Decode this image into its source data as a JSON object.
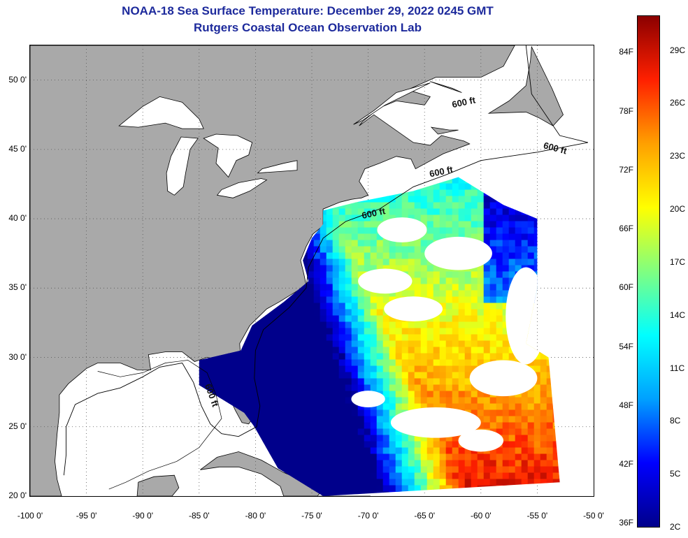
{
  "title": "NOAA-18 Sea Surface Temperature:  December 29, 2022 0245 GMT",
  "subtitle": "Rutgers Coastal Ocean Observation Lab",
  "map": {
    "lon_range": [
      -100,
      -50
    ],
    "lat_range": [
      20,
      52.5
    ],
    "lat_ticks": [
      {
        "value": 50,
        "label": "50 0'"
      },
      {
        "value": 45,
        "label": "45 0'"
      },
      {
        "value": 40,
        "label": "40 0'"
      },
      {
        "value": 35,
        "label": "35 0'"
      },
      {
        "value": 30,
        "label": "30 0'"
      },
      {
        "value": 25,
        "label": "25 0'"
      },
      {
        "value": 20,
        "label": "20 0'"
      }
    ],
    "lon_ticks": [
      {
        "value": -100,
        "label": "-100 0'"
      },
      {
        "value": -95,
        "label": "-95 0'"
      },
      {
        "value": -90,
        "label": "-90 0'"
      },
      {
        "value": -85,
        "label": "-85 0'"
      },
      {
        "value": -80,
        "label": "-80 0'"
      },
      {
        "value": -75,
        "label": "-75 0'"
      },
      {
        "value": -70,
        "label": "-70 0'"
      },
      {
        "value": -65,
        "label": "-65 0'"
      },
      {
        "value": -60,
        "label": "-60 0'"
      },
      {
        "value": -55,
        "label": "-55 0'"
      },
      {
        "value": -50,
        "label": "-50 0'"
      }
    ],
    "depth_labels": [
      {
        "text": "600 ft",
        "lon": -62.5,
        "lat": 48.0
      },
      {
        "text": "600 ft",
        "lon": -54.5,
        "lat": 45.1
      },
      {
        "text": "600 ft",
        "lon": -64.5,
        "lat": 43.0
      },
      {
        "text": "600 ft",
        "lon": -70.5,
        "lat": 40.0
      },
      {
        "text": "600 ft",
        "lon": -84.5,
        "lat": 28.0
      }
    ],
    "colors": {
      "land": "#a9a9a9",
      "no_data": "#ffffff",
      "grid": "#555555"
    }
  },
  "colorbar": {
    "f_labels": [
      {
        "value": 84,
        "label": "84F"
      },
      {
        "value": 78,
        "label": "78F"
      },
      {
        "value": 72,
        "label": "72F"
      },
      {
        "value": 66,
        "label": "66F"
      },
      {
        "value": 60,
        "label": "60F"
      },
      {
        "value": 54,
        "label": "54F"
      },
      {
        "value": 48,
        "label": "48F"
      },
      {
        "value": 42,
        "label": "42F"
      },
      {
        "value": 36,
        "label": "36F"
      }
    ],
    "c_labels": [
      {
        "value": 29,
        "label": "29C"
      },
      {
        "value": 26,
        "label": "26C"
      },
      {
        "value": 23,
        "label": "23C"
      },
      {
        "value": 20,
        "label": "20C"
      },
      {
        "value": 17,
        "label": "17C"
      },
      {
        "value": 14,
        "label": "14C"
      },
      {
        "value": 11,
        "label": "11C"
      },
      {
        "value": 8,
        "label": "8C"
      },
      {
        "value": 5,
        "label": "5C"
      },
      {
        "value": 2,
        "label": "2C"
      }
    ],
    "range_c": [
      2,
      31
    ],
    "colors": [
      "#00008b",
      "#0000ff",
      "#00a0ff",
      "#00ffff",
      "#80ff80",
      "#ffff00",
      "#ffa000",
      "#ff2000",
      "#8b0000"
    ]
  }
}
